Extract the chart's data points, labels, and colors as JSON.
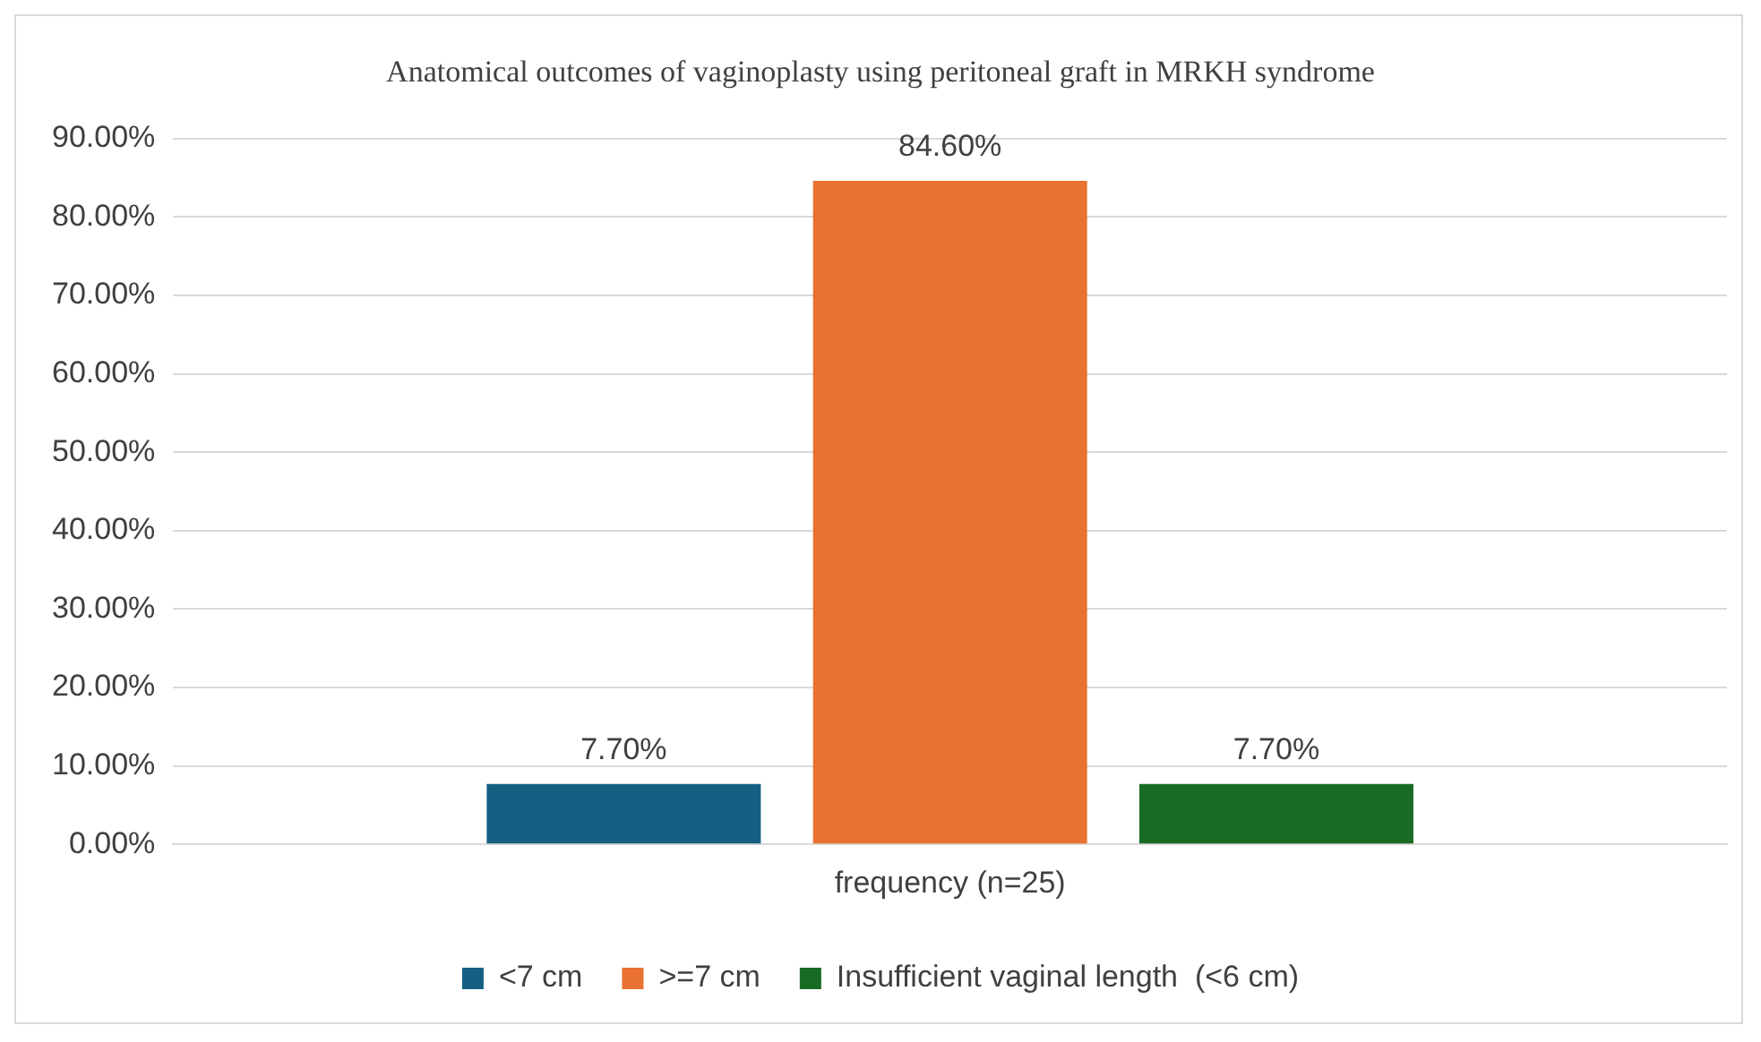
{
  "chart_data": {
    "type": "bar",
    "title": "Anatomical outcomes of vaginoplasty using peritoneal graft in MRKH syndrome",
    "categories": [
      "frequency (n=25)"
    ],
    "series": [
      {
        "name": "<7 cm",
        "color": "#156082",
        "values": [
          7.7
        ],
        "value_labels": [
          "7.70%"
        ]
      },
      {
        "name": ">=7 cm",
        "color": "#e97132",
        "values": [
          84.6
        ],
        "value_labels": [
          "84.60%"
        ]
      },
      {
        "name": "Insufficient vaginal length  (<6 cm)",
        "color": "#196b24",
        "values": [
          7.7
        ],
        "value_labels": [
          "7.70%"
        ]
      }
    ],
    "ylim": [
      0,
      90
    ],
    "yticks": [
      {
        "value": 0,
        "label": "0.00%"
      },
      {
        "value": 10,
        "label": "10.00%"
      },
      {
        "value": 20,
        "label": "20.00%"
      },
      {
        "value": 30,
        "label": "30.00%"
      },
      {
        "value": 40,
        "label": "40.00%"
      },
      {
        "value": 50,
        "label": "50.00%"
      },
      {
        "value": 60,
        "label": "60.00%"
      },
      {
        "value": 70,
        "label": "70.00%"
      },
      {
        "value": 80,
        "label": "80.00%"
      },
      {
        "value": 90,
        "label": "90.00%"
      }
    ],
    "grid": "y",
    "legend": "bottom"
  }
}
